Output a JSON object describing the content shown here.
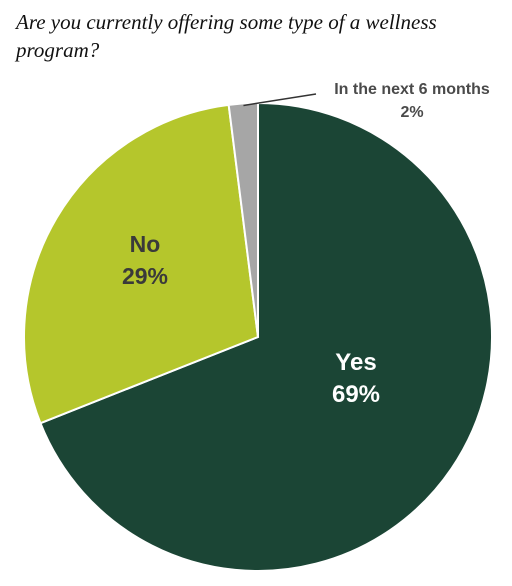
{
  "chart_data": {
    "type": "pie",
    "title": "Are you currently offering some type of a wellness program?",
    "slices": [
      {
        "label": "Yes",
        "value": 69,
        "value_label": "69%",
        "color": "#1b4535"
      },
      {
        "label": "No",
        "value": 29,
        "value_label": "29%",
        "color": "#b5c62c"
      },
      {
        "label": "In the next 6 months",
        "value": 2,
        "value_label": "2%",
        "color": "#a6a6a6"
      }
    ],
    "start_angle_deg": 0,
    "direction": "clockwise",
    "label_colors": {
      "Yes": "#ffffff",
      "No": "#3a3a3a",
      "In the next 6 months": "#4a4a4a"
    }
  }
}
